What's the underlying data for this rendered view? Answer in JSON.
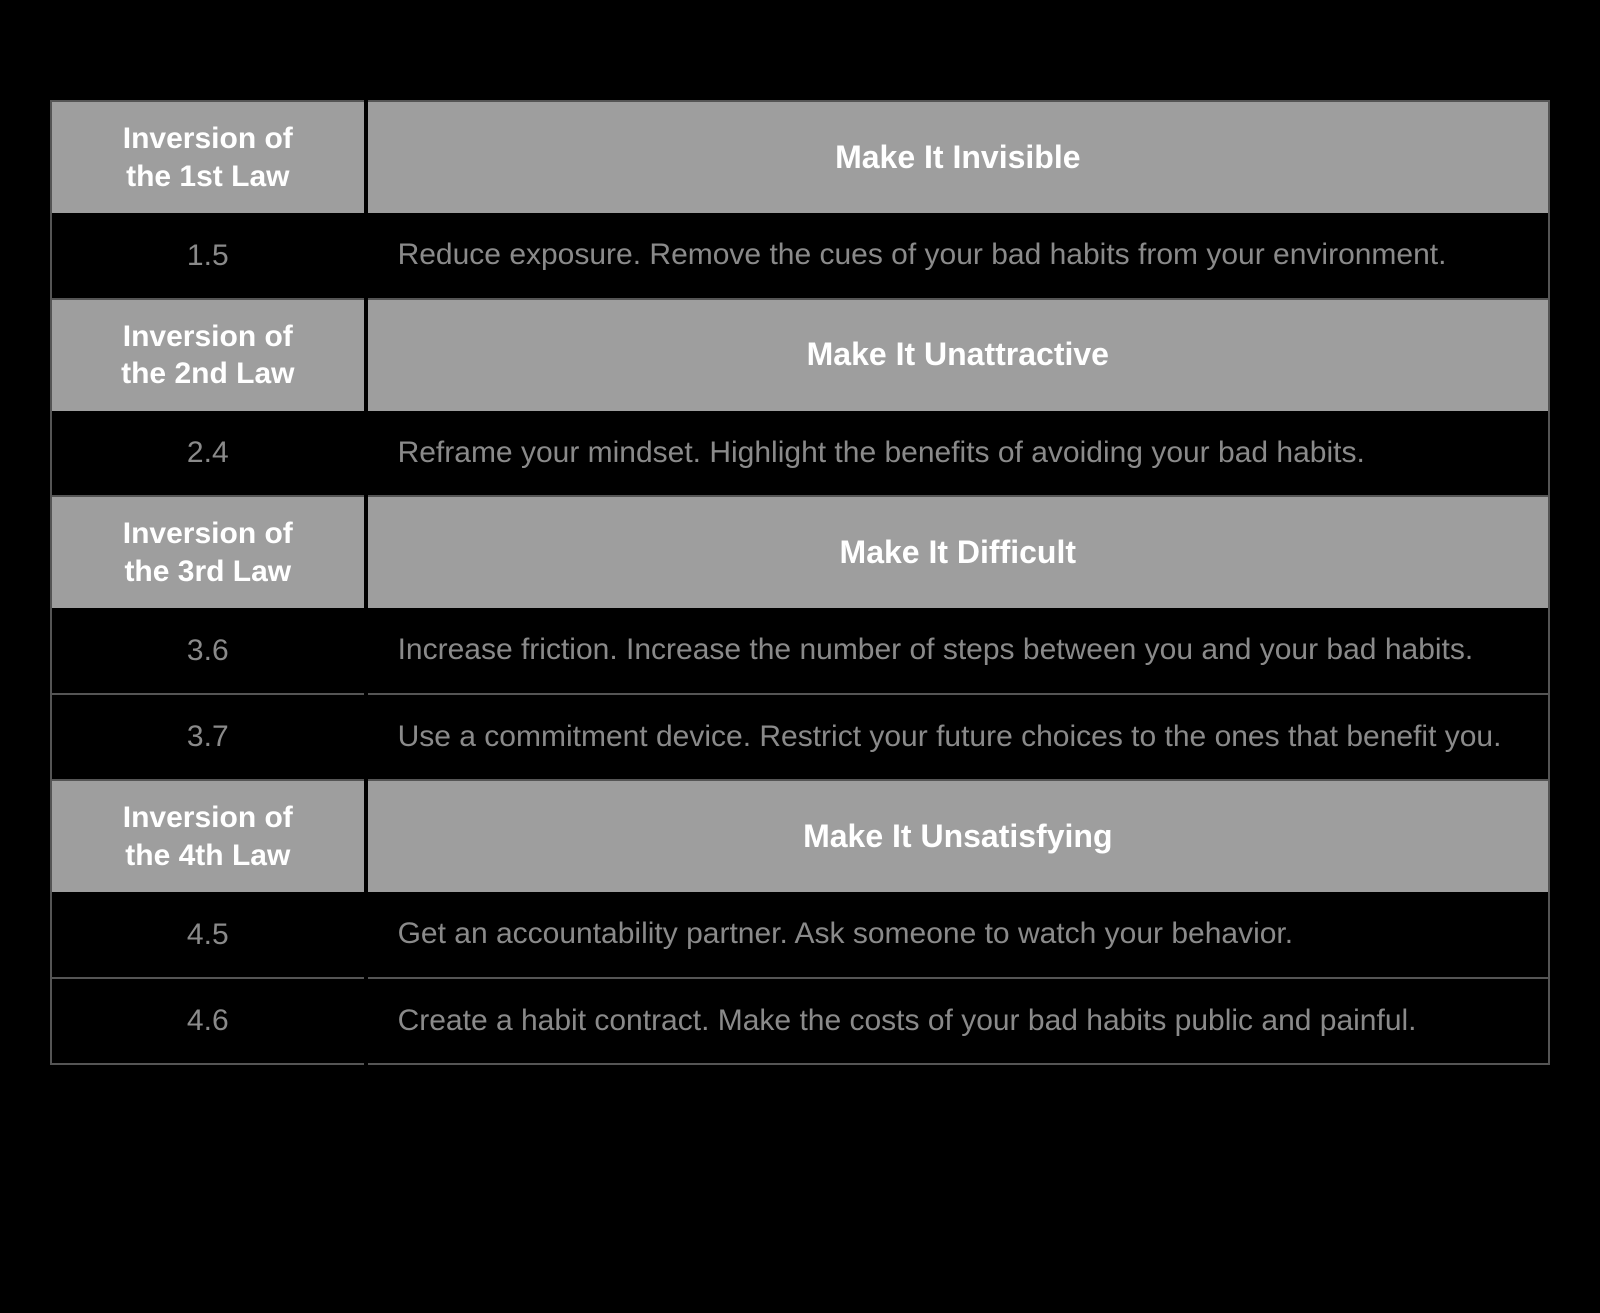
{
  "table": {
    "type": "table",
    "background_color": "#000000",
    "header_bg_color": "#9e9e9e",
    "header_text_color": "#ffffff",
    "data_text_color": "#8a8a8a",
    "border_color": "#555555",
    "col_left_width_pct": 21,
    "col_right_width_pct": 79,
    "header_fontsize": 30,
    "data_fontsize": 30,
    "sections": [
      {
        "header_left_line1": "Inversion of",
        "header_left_line2": "the 1st Law",
        "header_right": "Make It Invisible",
        "rows": [
          {
            "num": "1.5",
            "text": "Reduce exposure. Remove the cues of your bad habits from your environment."
          }
        ]
      },
      {
        "header_left_line1": "Inversion of",
        "header_left_line2": "the 2nd Law",
        "header_right": "Make It Unattractive",
        "rows": [
          {
            "num": "2.4",
            "text": "Reframe your mindset. Highlight the benefits of avoiding your bad habits."
          }
        ]
      },
      {
        "header_left_line1": "Inversion of",
        "header_left_line2": "the 3rd Law",
        "header_right": "Make It Difficult",
        "rows": [
          {
            "num": "3.6",
            "text": "Increase friction. Increase the number of steps between you and your bad habits."
          },
          {
            "num": "3.7",
            "text": "Use a commitment device. Restrict your future choices to the ones that benefit you."
          }
        ]
      },
      {
        "header_left_line1": "Inversion of",
        "header_left_line2": "the 4th Law",
        "header_right": "Make It Unsatisfying",
        "rows": [
          {
            "num": "4.5",
            "text": "Get an accountability partner. Ask someone to watch your behavior."
          },
          {
            "num": "4.6",
            "text": "Create a habit contract. Make the costs of your bad habits public and painful."
          }
        ]
      }
    ]
  }
}
